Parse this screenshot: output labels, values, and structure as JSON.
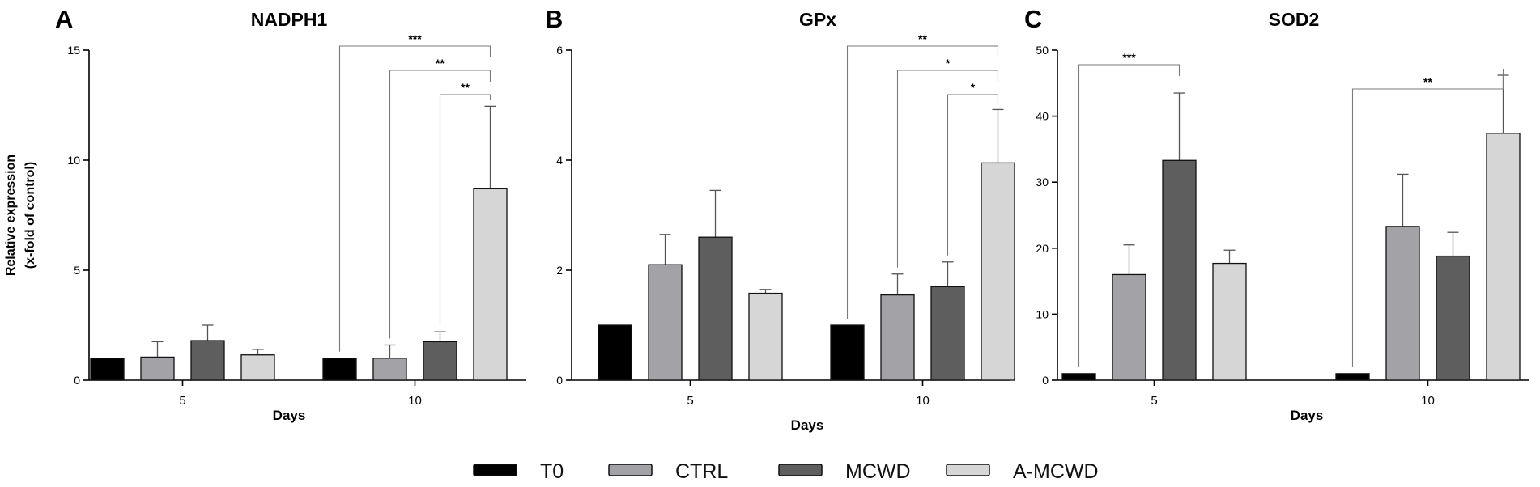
{
  "figure": {
    "legend_position": "bottom-center",
    "legend": [
      {
        "label": "T0",
        "color": "#000000"
      },
      {
        "label": "CTRL",
        "color": "#a3a3a7"
      },
      {
        "label": "MCWD",
        "color": "#5e5e5e"
      },
      {
        "label": "A-MCWD",
        "color": "#d6d6d6"
      }
    ]
  },
  "chart_data": [
    {
      "type": "bar",
      "panel_label": "A",
      "title": "NADPH1",
      "xlabel": "Days",
      "ylabel_lines": [
        "Relative expression",
        "(x-fold of control)"
      ],
      "ylim": [
        0,
        15
      ],
      "yticks": [
        0,
        5,
        10,
        15
      ],
      "grid": false,
      "categories": [
        "5",
        "10"
      ],
      "series": [
        {
          "name": "T0",
          "values": [
            1.0,
            1.0
          ],
          "errors": [
            0,
            0
          ]
        },
        {
          "name": "CTRL",
          "values": [
            1.05,
            1.0
          ],
          "errors": [
            0.7,
            0.6
          ]
        },
        {
          "name": "MCWD",
          "values": [
            1.8,
            1.75
          ],
          "errors": [
            0.7,
            0.45
          ]
        },
        {
          "name": "A-MCWD",
          "values": [
            1.15,
            8.7
          ],
          "errors": [
            0.25,
            3.75
          ]
        }
      ],
      "significance": [
        {
          "category": "10",
          "from": "T0",
          "to": "A-MCWD",
          "label": "***"
        },
        {
          "category": "10",
          "from": "CTRL",
          "to": "A-MCWD",
          "label": "**"
        },
        {
          "category": "10",
          "from": "MCWD",
          "to": "A-MCWD",
          "label": "**"
        }
      ]
    },
    {
      "type": "bar",
      "panel_label": "B",
      "title": "GPx",
      "xlabel": "Days",
      "ylabel_lines": [],
      "ylim": [
        0,
        6
      ],
      "yticks": [
        0,
        2,
        4,
        6
      ],
      "grid": false,
      "categories": [
        "5",
        "10"
      ],
      "series": [
        {
          "name": "T0",
          "values": [
            1.0,
            1.0
          ],
          "errors": [
            0,
            0
          ]
        },
        {
          "name": "CTRL",
          "values": [
            2.1,
            1.55
          ],
          "errors": [
            0.55,
            0.38
          ]
        },
        {
          "name": "MCWD",
          "values": [
            2.6,
            1.7
          ],
          "errors": [
            0.85,
            0.45
          ]
        },
        {
          "name": "A-MCWD",
          "values": [
            1.58,
            3.95
          ],
          "errors": [
            0.07,
            0.97
          ]
        }
      ],
      "significance": [
        {
          "category": "10",
          "from": "T0",
          "to": "A-MCWD",
          "label": "**"
        },
        {
          "category": "10",
          "from": "CTRL",
          "to": "A-MCWD",
          "label": "*"
        },
        {
          "category": "10",
          "from": "MCWD",
          "to": "A-MCWD",
          "label": "*"
        }
      ]
    },
    {
      "type": "bar",
      "panel_label": "C",
      "title": "SOD2",
      "xlabel": "Days",
      "ylabel_lines": [],
      "ylim": [
        0,
        50
      ],
      "yticks": [
        0,
        10,
        20,
        30,
        40,
        50
      ],
      "grid": false,
      "categories": [
        "5",
        "10"
      ],
      "series": [
        {
          "name": "T0",
          "values": [
            1.0,
            1.0
          ],
          "errors": [
            0,
            0
          ]
        },
        {
          "name": "CTRL",
          "values": [
            16.0,
            23.3
          ],
          "errors": [
            4.5,
            7.9
          ]
        },
        {
          "name": "MCWD",
          "values": [
            33.3,
            18.8
          ],
          "errors": [
            10.2,
            3.6
          ]
        },
        {
          "name": "A-MCWD",
          "values": [
            17.7,
            37.4
          ],
          "errors": [
            2.0,
            8.8
          ]
        }
      ],
      "significance": [
        {
          "category": "5",
          "from": "T0",
          "to": "MCWD",
          "label": "***"
        },
        {
          "category": "10",
          "from": "T0",
          "to": "A-MCWD",
          "label": "**"
        }
      ]
    }
  ]
}
